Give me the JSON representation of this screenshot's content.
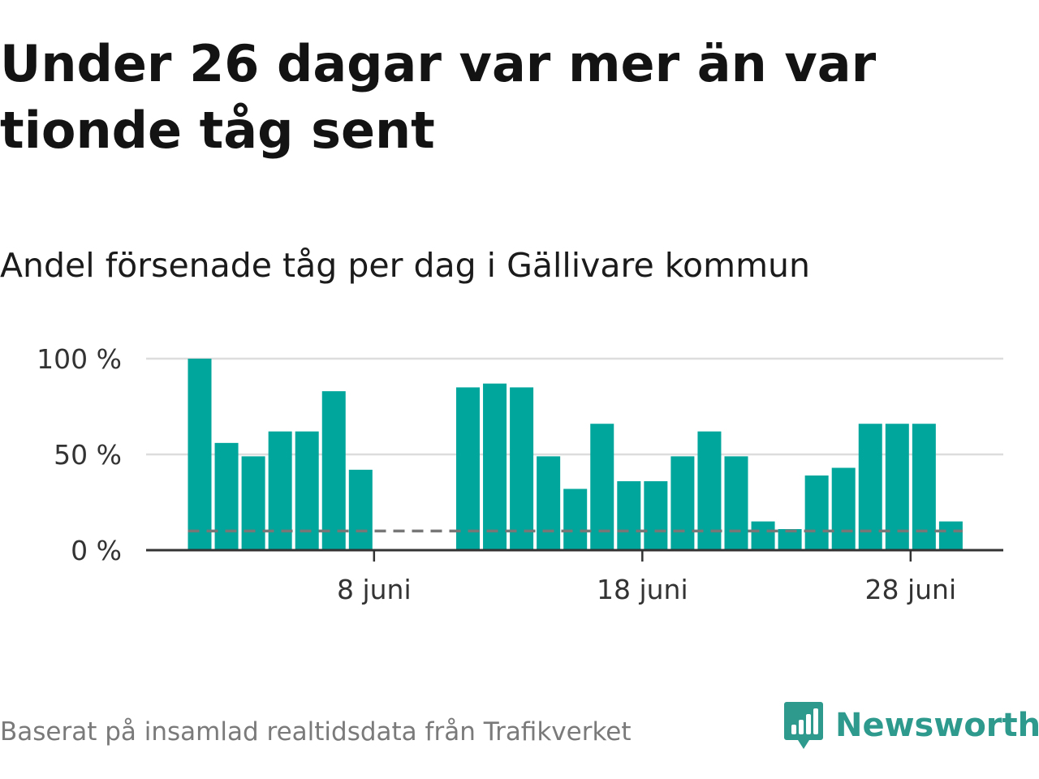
{
  "header": {
    "title": "Under 26 dagar var mer än var tionde tåg sent",
    "subtitle": "Andel försenade tåg per dag i Gällivare kommun"
  },
  "footer": {
    "source": "Baserat på insamlad realtidsdata från Trafikverket",
    "brand": "Newsworthy"
  },
  "icons": {
    "logo": "newsworthy-logo-icon"
  },
  "colors": {
    "bar": "#00a59b",
    "grid": "#dddddd",
    "reference": "#777777",
    "axis": "#333333",
    "brand": "#2e9a8e"
  },
  "chart_data": {
    "type": "bar",
    "x_dates": [
      1,
      2,
      3,
      4,
      5,
      6,
      7,
      8,
      9,
      10,
      11,
      12,
      13,
      14,
      15,
      16,
      17,
      18,
      19,
      20,
      21,
      22,
      23,
      24,
      25,
      26,
      27,
      28,
      29
    ],
    "values": [
      100,
      56,
      49,
      62,
      62,
      83,
      42,
      null,
      null,
      null,
      85,
      87,
      85,
      49,
      32,
      66,
      36,
      36,
      49,
      62,
      49,
      15,
      11,
      39,
      43,
      66,
      66,
      66,
      15
    ],
    "unit": "%",
    "ylim": [
      0,
      100
    ],
    "yticks": [
      0,
      50,
      100
    ],
    "ytick_labels": [
      "0 %",
      "50 %",
      "100 %"
    ],
    "xticks": [
      8,
      18,
      28
    ],
    "xtick_labels": [
      "8 juni",
      "18 juni",
      "28 juni"
    ],
    "reference_line": 10,
    "grid": true,
    "legend": "none"
  }
}
